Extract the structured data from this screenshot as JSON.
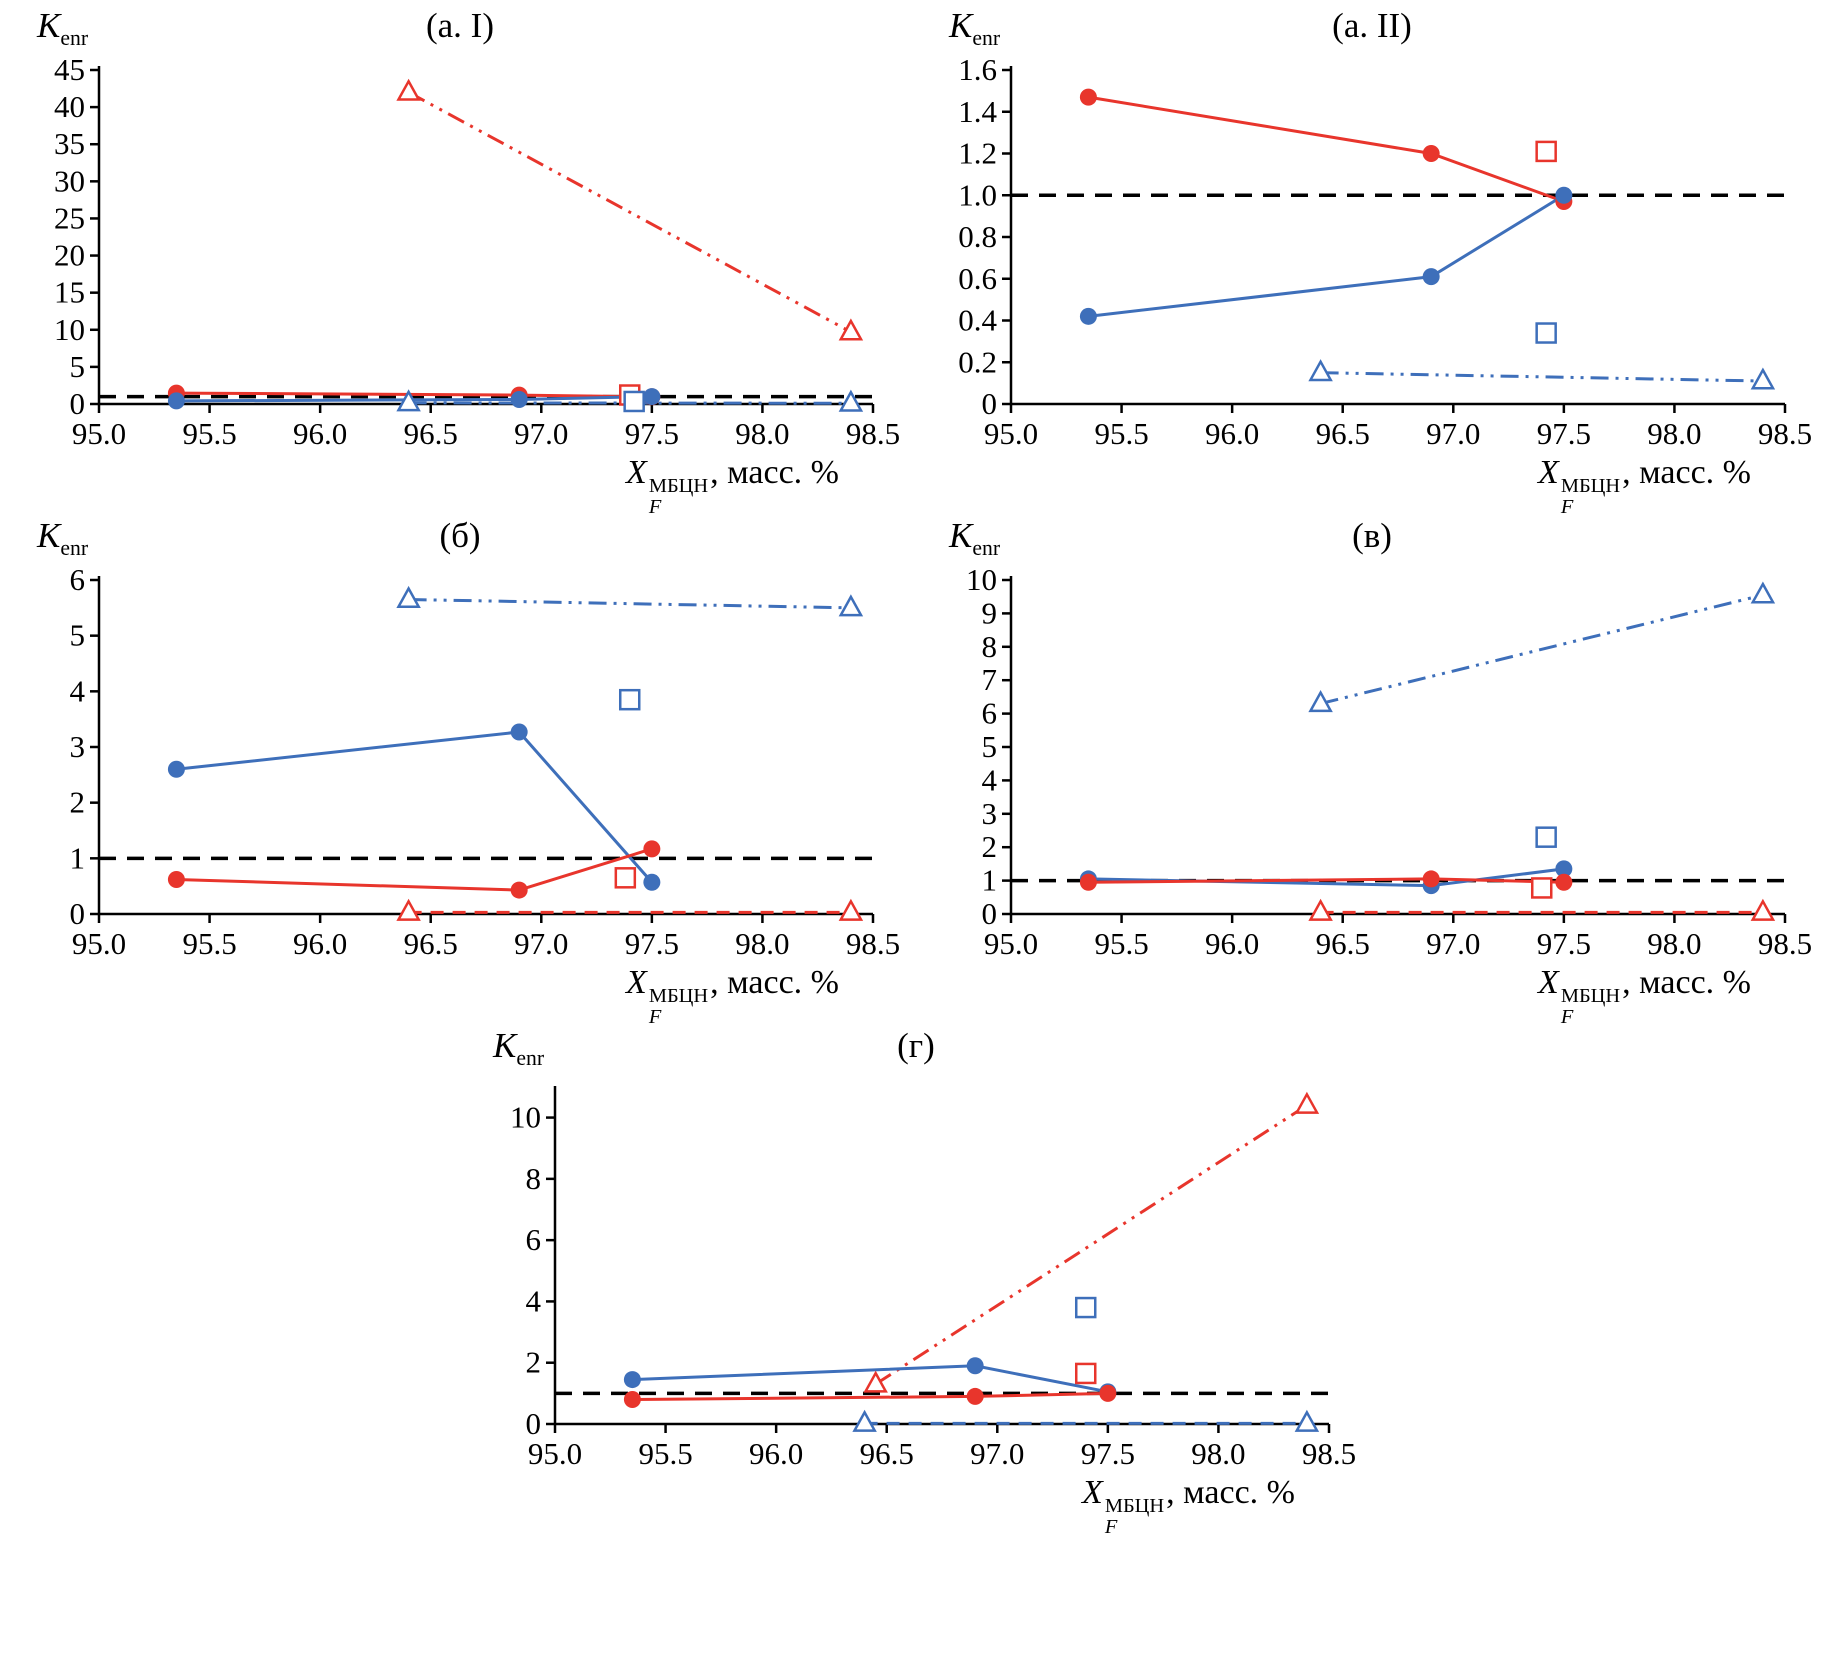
{
  "labels": {
    "y_main": "K",
    "y_sub": "enr",
    "x_main": "X",
    "x_sub": "F",
    "x_sup": "МБЦН",
    "x_rest": ", масс. %"
  },
  "colors": {
    "red": "#e8352c",
    "blue": "#3e6fba",
    "ref": "#000000"
  },
  "chart_data": [
    {
      "id": "a-I",
      "type": "line",
      "title": "(а. I)",
      "xlim": [
        95.0,
        98.5
      ],
      "ylim": [
        0,
        45
      ],
      "xticks": [
        95.0,
        95.5,
        96.0,
        96.5,
        97.0,
        97.5,
        98.0,
        98.5
      ],
      "xtick_labels": [
        "95.0",
        "95.5",
        "96.0",
        "96.5",
        "97.0",
        "97.5",
        "98.0",
        "98.5"
      ],
      "yticks": [
        0,
        5,
        10,
        15,
        20,
        25,
        30,
        35,
        40,
        45
      ],
      "ytick_labels": [
        "0",
        "5",
        "10",
        "15",
        "20",
        "25",
        "30",
        "35",
        "40",
        "45"
      ],
      "ref_y": 1,
      "series": [
        {
          "name": "red-triangle-dashdot",
          "color": "red",
          "line": "dashdotdot",
          "marker": "triangle",
          "x": [
            96.4,
            98.4
          ],
          "y": [
            42,
            9.7
          ]
        },
        {
          "name": "blue-triangle-dashdot",
          "color": "blue",
          "line": "dashdotdot",
          "marker": "triangle",
          "x": [
            96.4,
            98.4
          ],
          "y": [
            0.15,
            0.1
          ]
        },
        {
          "name": "red-circle-solid",
          "color": "red",
          "line": "solid",
          "marker": "circle",
          "x": [
            95.35,
            96.9,
            97.5
          ],
          "y": [
            1.47,
            1.2,
            0.97
          ]
        },
        {
          "name": "blue-circle-solid",
          "color": "blue",
          "line": "solid",
          "marker": "circle",
          "x": [
            95.35,
            96.9,
            97.5
          ],
          "y": [
            0.42,
            0.61,
            1.0
          ]
        },
        {
          "name": "red-square",
          "color": "red",
          "line": "none",
          "marker": "square",
          "x": [
            97.4
          ],
          "y": [
            1.21
          ]
        },
        {
          "name": "blue-square",
          "color": "blue",
          "line": "none",
          "marker": "square",
          "x": [
            97.42
          ],
          "y": [
            0.34
          ]
        }
      ]
    },
    {
      "id": "a-II",
      "type": "line",
      "title": "(а. II)",
      "xlim": [
        95.0,
        98.5
      ],
      "ylim": [
        0,
        1.6
      ],
      "xticks": [
        95.0,
        95.5,
        96.0,
        96.5,
        97.0,
        97.5,
        98.0,
        98.5
      ],
      "xtick_labels": [
        "95.0",
        "95.5",
        "96.0",
        "96.5",
        "97.0",
        "97.5",
        "98.0",
        "98.5"
      ],
      "yticks": [
        0,
        0.2,
        0.4,
        0.6,
        0.8,
        1.0,
        1.2,
        1.4,
        1.6
      ],
      "ytick_labels": [
        "0",
        "0.2",
        "0.4",
        "0.6",
        "0.8",
        "1.0",
        "1.2",
        "1.4",
        "1.6"
      ],
      "ref_y": 1,
      "series": [
        {
          "name": "blue-triangle-dashdot",
          "color": "blue",
          "line": "dashdotdot",
          "marker": "triangle",
          "x": [
            96.4,
            98.4
          ],
          "y": [
            0.15,
            0.11
          ]
        },
        {
          "name": "red-circle-solid",
          "color": "red",
          "line": "solid",
          "marker": "circle",
          "x": [
            95.35,
            96.9,
            97.5
          ],
          "y": [
            1.47,
            1.2,
            0.97
          ]
        },
        {
          "name": "blue-circle-solid",
          "color": "blue",
          "line": "solid",
          "marker": "circle",
          "x": [
            95.35,
            96.9,
            97.5
          ],
          "y": [
            0.42,
            0.61,
            1.0
          ]
        },
        {
          "name": "red-square",
          "color": "red",
          "line": "none",
          "marker": "square",
          "x": [
            97.42
          ],
          "y": [
            1.21
          ]
        },
        {
          "name": "blue-square",
          "color": "blue",
          "line": "none",
          "marker": "square",
          "x": [
            97.42
          ],
          "y": [
            0.34
          ]
        }
      ]
    },
    {
      "id": "b",
      "type": "line",
      "title": "(б)",
      "xlim": [
        95.0,
        98.5
      ],
      "ylim": [
        0,
        6
      ],
      "xticks": [
        95.0,
        95.5,
        96.0,
        96.5,
        97.0,
        97.5,
        98.0,
        98.5
      ],
      "xtick_labels": [
        "95.0",
        "95.5",
        "96.0",
        "96.5",
        "97.0",
        "97.5",
        "98.0",
        "98.5"
      ],
      "yticks": [
        0,
        1,
        2,
        3,
        4,
        5,
        6
      ],
      "ytick_labels": [
        "0",
        "1",
        "2",
        "3",
        "4",
        "5",
        "6"
      ],
      "ref_y": 1,
      "series": [
        {
          "name": "blue-triangle-dashdot",
          "color": "blue",
          "line": "dashdotdot",
          "marker": "triangle",
          "x": [
            96.4,
            98.4
          ],
          "y": [
            5.65,
            5.5
          ]
        },
        {
          "name": "red-triangle-dashed",
          "color": "red",
          "line": "dashed",
          "marker": "triangle",
          "x": [
            96.4,
            98.4
          ],
          "y": [
            0.03,
            0.03
          ]
        },
        {
          "name": "blue-circle-solid",
          "color": "blue",
          "line": "solid",
          "marker": "circle",
          "x": [
            95.35,
            96.9,
            97.5
          ],
          "y": [
            2.6,
            3.27,
            0.57
          ]
        },
        {
          "name": "red-circle-solid",
          "color": "red",
          "line": "solid",
          "marker": "circle",
          "x": [
            95.35,
            96.9,
            97.5
          ],
          "y": [
            0.62,
            0.43,
            1.17
          ]
        },
        {
          "name": "blue-square",
          "color": "blue",
          "line": "none",
          "marker": "square",
          "x": [
            97.4
          ],
          "y": [
            3.85
          ]
        },
        {
          "name": "red-square",
          "color": "red",
          "line": "none",
          "marker": "square",
          "x": [
            97.38
          ],
          "y": [
            0.65
          ]
        }
      ]
    },
    {
      "id": "v",
      "type": "line",
      "title": "(в)",
      "xlim": [
        95.0,
        98.5
      ],
      "ylim": [
        0,
        10
      ],
      "xticks": [
        95.0,
        95.5,
        96.0,
        96.5,
        97.0,
        97.5,
        98.0,
        98.5
      ],
      "xtick_labels": [
        "95.0",
        "95.5",
        "96.0",
        "96.5",
        "97.0",
        "97.5",
        "98.0",
        "98.5"
      ],
      "yticks": [
        0,
        1,
        2,
        3,
        4,
        5,
        6,
        7,
        8,
        9,
        10
      ],
      "ytick_labels": [
        "0",
        "1",
        "2",
        "3",
        "4",
        "5",
        "6",
        "7",
        "8",
        "9",
        "10"
      ],
      "ref_y": 1,
      "series": [
        {
          "name": "blue-triangle-dashdot",
          "color": "blue",
          "line": "dashdotdot",
          "marker": "triangle",
          "x": [
            96.4,
            98.4
          ],
          "y": [
            6.3,
            9.55
          ]
        },
        {
          "name": "red-triangle-dashed",
          "color": "red",
          "line": "dashed",
          "marker": "triangle",
          "x": [
            96.4,
            98.4
          ],
          "y": [
            0.05,
            0.05
          ]
        },
        {
          "name": "blue-circle-solid",
          "color": "blue",
          "line": "solid",
          "marker": "circle",
          "x": [
            95.35,
            96.9,
            97.5
          ],
          "y": [
            1.05,
            0.85,
            1.35
          ]
        },
        {
          "name": "red-circle-solid",
          "color": "red",
          "line": "solid",
          "marker": "circle",
          "x": [
            95.35,
            96.9,
            97.5
          ],
          "y": [
            0.95,
            1.05,
            0.95
          ]
        },
        {
          "name": "blue-square",
          "color": "blue",
          "line": "none",
          "marker": "square",
          "x": [
            97.42
          ],
          "y": [
            2.3
          ]
        },
        {
          "name": "red-square",
          "color": "red",
          "line": "none",
          "marker": "square",
          "x": [
            97.4
          ],
          "y": [
            0.78
          ]
        }
      ]
    },
    {
      "id": "g",
      "type": "line",
      "title": "(г)",
      "xlim": [
        95.0,
        98.5
      ],
      "ylim": [
        0,
        10.9
      ],
      "xticks": [
        95.0,
        95.5,
        96.0,
        96.5,
        97.0,
        97.5,
        98.0,
        98.5
      ],
      "xtick_labels": [
        "95.0",
        "95.5",
        "96.0",
        "96.5",
        "97.0",
        "97.5",
        "98.0",
        "98.5"
      ],
      "yticks": [
        0,
        2,
        4,
        6,
        8,
        10
      ],
      "ytick_labels": [
        "0",
        "2",
        "4",
        "6",
        "8",
        "10"
      ],
      "ref_y": 1,
      "series": [
        {
          "name": "red-triangle-dashdot",
          "color": "red",
          "line": "dashdotdot",
          "marker": "triangle",
          "x": [
            96.45,
            98.4
          ],
          "y": [
            1.3,
            10.4
          ]
        },
        {
          "name": "blue-triangle-dashed",
          "color": "blue",
          "line": "dashed",
          "marker": "triangle",
          "x": [
            96.4,
            98.4
          ],
          "y": [
            0.02,
            0.02
          ]
        },
        {
          "name": "blue-circle-solid",
          "color": "blue",
          "line": "solid",
          "marker": "circle",
          "x": [
            95.35,
            96.9,
            97.5
          ],
          "y": [
            1.45,
            1.9,
            1.05
          ]
        },
        {
          "name": "red-circle-solid",
          "color": "red",
          "line": "solid",
          "marker": "circle",
          "x": [
            95.35,
            96.9,
            97.5
          ],
          "y": [
            0.8,
            0.9,
            1.0
          ]
        },
        {
          "name": "blue-square",
          "color": "blue",
          "line": "none",
          "marker": "square",
          "x": [
            97.4
          ],
          "y": [
            3.8
          ]
        },
        {
          "name": "red-square",
          "color": "red",
          "line": "none",
          "marker": "square",
          "x": [
            97.4
          ],
          "y": [
            1.65
          ]
        }
      ]
    }
  ]
}
